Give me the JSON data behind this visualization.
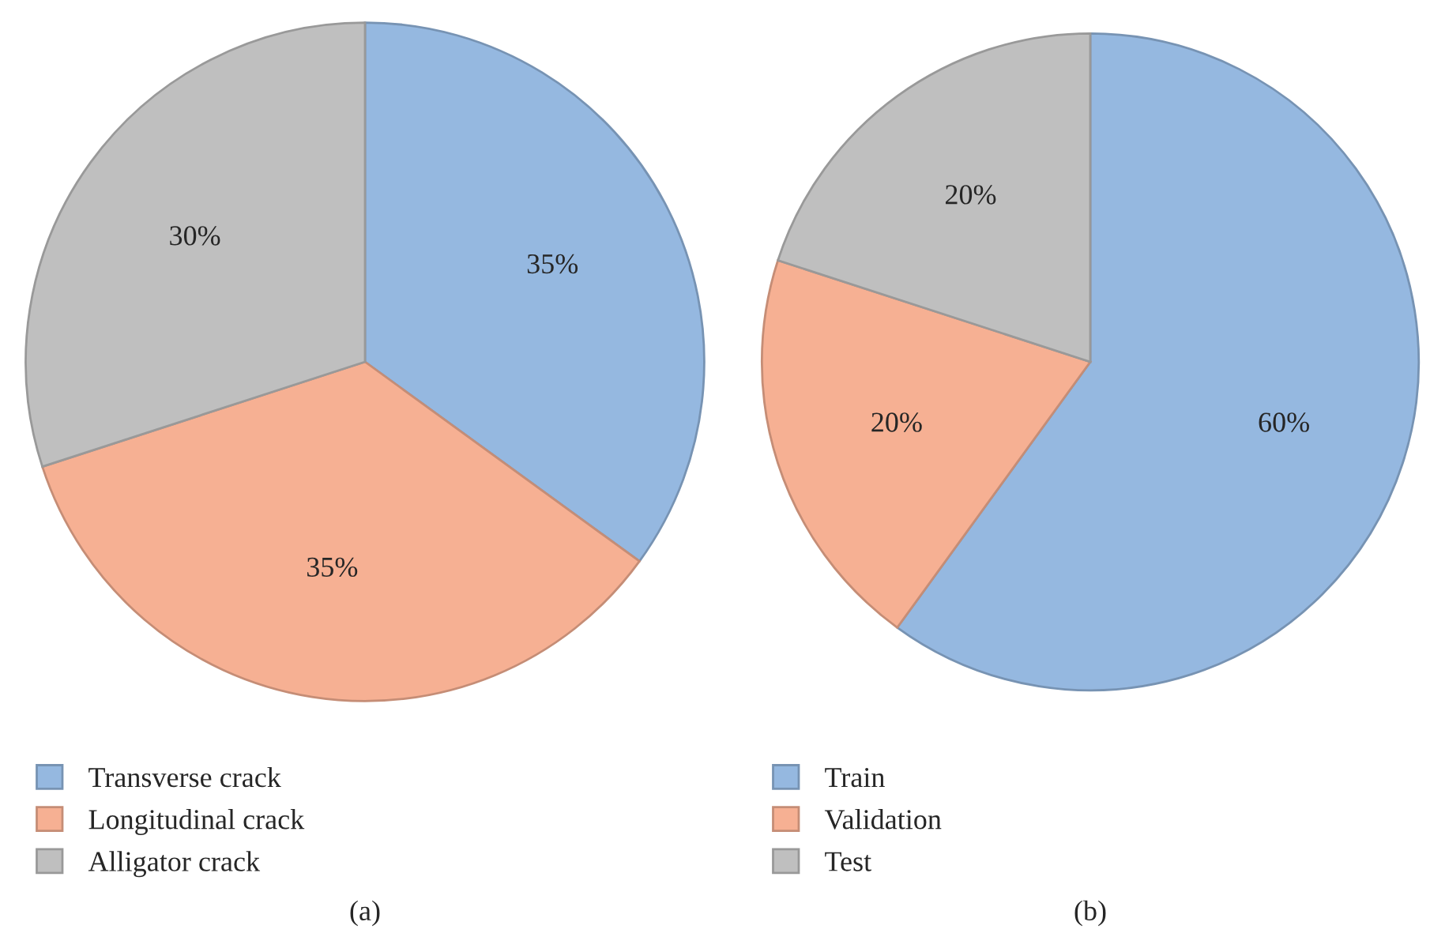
{
  "chart_data": [
    {
      "type": "pie",
      "title": "(a)",
      "categories": [
        "Transverse crack",
        "Longitudinal crack",
        "Alligator crack"
      ],
      "values": [
        35,
        35,
        30
      ],
      "colors": [
        "#95b8e0",
        "#f6b093",
        "#bfbfbf"
      ],
      "value_labels": [
        "35%",
        "35%",
        "30%"
      ],
      "legend": "bottom left"
    },
    {
      "type": "pie",
      "title": "(b)",
      "categories": [
        "Train",
        "Validation",
        "Test"
      ],
      "values": [
        60,
        20,
        20
      ],
      "colors": [
        "#95b8e0",
        "#f6b093",
        "#bfbfbf"
      ],
      "value_labels": [
        "60%",
        "20%",
        "20%"
      ],
      "legend": "bottom left"
    }
  ]
}
